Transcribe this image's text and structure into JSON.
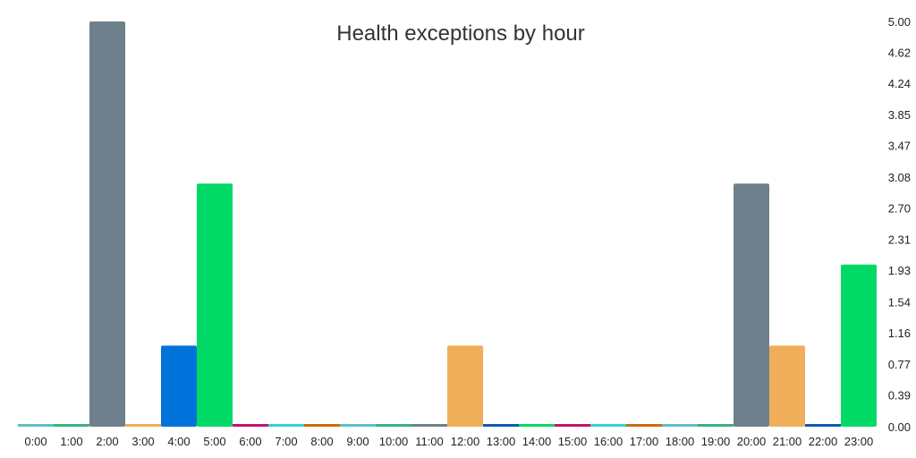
{
  "chart_data": {
    "type": "bar",
    "title": "Health exceptions by hour",
    "xlabel": "",
    "ylabel": "",
    "categories": [
      "0:00",
      "1:00",
      "2:00",
      "3:00",
      "4:00",
      "5:00",
      "6:00",
      "7:00",
      "8:00",
      "9:00",
      "10:00",
      "11:00",
      "12:00",
      "13:00",
      "14:00",
      "15:00",
      "16:00",
      "17:00",
      "18:00",
      "19:00",
      "20:00",
      "21:00",
      "22:00",
      "23:00"
    ],
    "values": [
      0,
      0,
      5,
      0,
      1,
      3,
      0,
      0,
      0,
      0,
      0,
      0,
      1,
      0,
      0,
      0,
      0,
      0,
      0,
      0,
      3,
      1,
      0,
      2
    ],
    "colors": [
      "#5BC0C4",
      "#3BAF85",
      "#6E808C",
      "#F0AD5A",
      "#0073DB",
      "#00D966",
      "#C4146E",
      "#2ED3D9",
      "#C86E0A",
      "#5BC0C4",
      "#3BAF85",
      "#6E808C",
      "#F0AD5A",
      "#0B5CB5",
      "#00D966",
      "#C4146E",
      "#2ED3D9",
      "#C86E0A",
      "#5BC0C4",
      "#3BAF85",
      "#6E808C",
      "#F0AD5A",
      "#0B5CB5",
      "#00D966"
    ],
    "y_axis": {
      "position": "right",
      "range": [
        0,
        5
      ],
      "tick_labels": [
        "0.00",
        "0.39",
        "0.77",
        "1.16",
        "1.54",
        "1.93",
        "2.31",
        "2.70",
        "3.08",
        "3.47",
        "3.85",
        "4.24",
        "4.62",
        "5.00"
      ]
    },
    "grid": false,
    "legend": "none"
  }
}
